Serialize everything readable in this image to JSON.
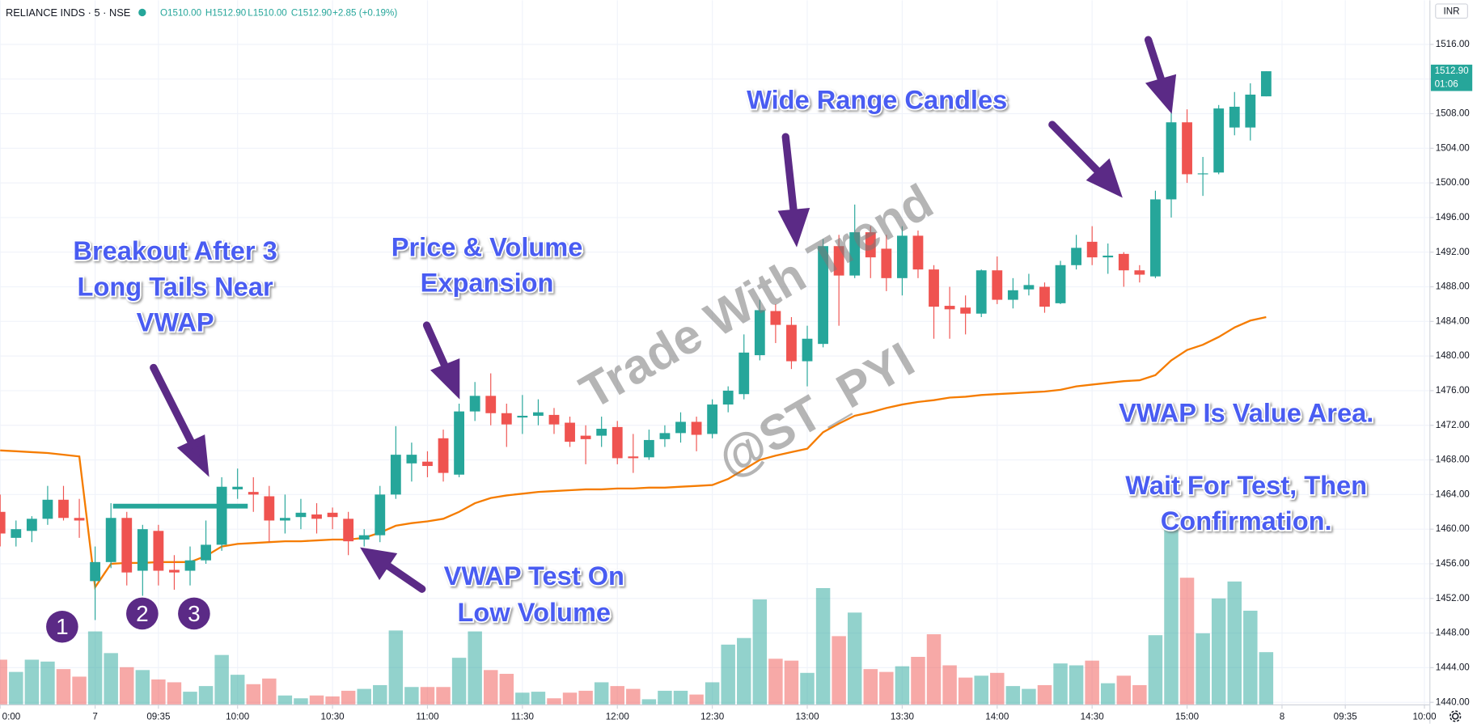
{
  "header": {
    "symbol": "RELIANCE INDS · 5 · NSE",
    "ohlc": [
      "O1510.00",
      "H1512.90",
      "L1510.00",
      "C1512.90",
      "+2.85 (+0.19%)"
    ],
    "currency": "INR"
  },
  "chart_data": {
    "type": "candlestick",
    "categories": [
      "0:00",
      null,
      null,
      null,
      null,
      null,
      "7",
      null,
      null,
      null,
      "09:35",
      null,
      null,
      null,
      null,
      "10:00",
      null,
      null,
      null,
      null,
      null,
      "10:30",
      null,
      null,
      null,
      null,
      null,
      "11:00",
      null,
      null,
      null,
      null,
      null,
      "11:30",
      null,
      null,
      null,
      null,
      null,
      "12:00",
      null,
      null,
      null,
      null,
      null,
      "12:30",
      null,
      null,
      null,
      null,
      null,
      "13:00",
      null,
      null,
      null,
      null,
      null,
      "13:30",
      null,
      null,
      null,
      null,
      null,
      "14:00",
      null,
      null,
      null,
      null,
      null,
      "14:30",
      null,
      null,
      null,
      null,
      null,
      "15:00",
      null,
      null,
      null,
      null,
      null,
      "8",
      null,
      null,
      null,
      "09:35",
      null,
      null,
      null,
      null,
      "10:00"
    ],
    "open": [
      1462,
      1459,
      1459.8,
      1461.2,
      1463.4,
      1461.3,
      1454,
      1456.2,
      1461.3,
      1455.2,
      1459.8,
      1455.3,
      1455.2,
      1456.4,
      1458.2,
      1464.6,
      1464.3,
      1463.8,
      1461,
      1461.4,
      1461.7,
      1461.9,
      1461.2,
      1458.8,
      1459.3,
      1464,
      1467.6,
      1467.8,
      1470.5,
      1466.3,
      1473.6,
      1475.4,
      1473.4,
      1472.9,
      1473.1,
      1473.2,
      1472.3,
      1470.8,
      1470.8,
      1471.8,
      1468.4,
      1468.3,
      1470.4,
      1471.1,
      1472.4,
      1471,
      1474.4,
      1475.6,
      1480.1,
      1485.2,
      1483.6,
      1479.4,
      1481.4,
      1492.7,
      1489.3,
      1494.3,
      1492.4,
      1489,
      1493.9,
      1490,
      1485.8,
      1485.6,
      1484.9,
      1489.9,
      1486.5,
      1487.7,
      1488,
      1486.1,
      1490.5,
      1493.2,
      1491.4,
      1491.8,
      1489.9,
      1489.2,
      1498.1,
      1507,
      1501,
      1501.2,
      1506.4,
      1506.4,
      1510,
      null,
      null,
      null,
      null,
      null,
      null,
      null,
      null,
      null,
      null
    ],
    "high": [
      1464,
      1461,
      1461.5,
      1465,
      1465,
      1463.5,
      1458,
      1463,
      1462,
      1460.5,
      1460.5,
      1457,
      1458,
      1461,
      1466,
      1467,
      1466,
      1465,
      1464,
      1463.5,
      1463,
      1462.5,
      1462,
      1460,
      1465,
      1471.9,
      1470,
      1469,
      1471.5,
      1474.5,
      1477,
      1478,
      1474.5,
      1475.5,
      1475,
      1474,
      1473,
      1472,
      1473,
      1472.5,
      1471,
      1471.5,
      1472,
      1473.5,
      1473,
      1475,
      1476.5,
      1482.5,
      1486.5,
      1486,
      1484.5,
      1483.5,
      1493.5,
      1494,
      1497.5,
      1495,
      1494,
      1495,
      1494.5,
      1490.5,
      1488,
      1487,
      1490,
      1491.5,
      1489,
      1489.5,
      1488.5,
      1491,
      1494,
      1495,
      1493,
      1492,
      1490.5,
      1499.1,
      1508.5,
      1508.5,
      1503,
      1509,
      1510.5,
      1511.5,
      1512.9,
      null,
      null,
      null,
      null,
      null,
      null,
      null,
      null,
      null,
      null
    ],
    "low": [
      1458,
      1458,
      1458.5,
      1460.5,
      1461,
      1459,
      1449.5,
      1455.5,
      1453.5,
      1452.3,
      1453.5,
      1453,
      1453.5,
      1456,
      1457.5,
      1463.5,
      1462,
      1458.5,
      1459.5,
      1460,
      1459.5,
      1460,
      1457,
      1458,
      1458.5,
      1463.5,
      1465.5,
      1466,
      1465.5,
      1466,
      1472.5,
      1472,
      1469.5,
      1471,
      1472,
      1471,
      1469.5,
      1467.5,
      1469.5,
      1467.5,
      1466.5,
      1468,
      1469.5,
      1470,
      1469,
      1470.5,
      1473.5,
      1475,
      1479.5,
      1481.5,
      1478.5,
      1476.5,
      1481,
      1483.5,
      1489,
      1489,
      1487.5,
      1487,
      1489,
      1482,
      1482,
      1482.5,
      1484.5,
      1486,
      1485.5,
      1487,
      1485,
      1486,
      1490,
      1490.5,
      1489.5,
      1488,
      1488.5,
      1489,
      1496,
      1500,
      1498.5,
      1501,
      1505.5,
      1504.9,
      1510,
      null,
      null,
      null,
      null,
      null,
      null,
      null,
      null,
      null,
      null
    ],
    "close": [
      1459.5,
      1460,
      1461.2,
      1463.4,
      1461.3,
      1461,
      1456.2,
      1461.3,
      1455,
      1460,
      1455.2,
      1455,
      1456.4,
      1458.2,
      1464.9,
      1464.9,
      1464,
      1461,
      1461.3,
      1461.9,
      1461.2,
      1461.4,
      1458.6,
      1459.3,
      1464,
      1468.6,
      1468.6,
      1467.3,
      1466.5,
      1473.6,
      1475.4,
      1473.4,
      1472.1,
      1473.1,
      1473.5,
      1472.1,
      1470.1,
      1470.4,
      1471.6,
      1468.2,
      1468.2,
      1470.3,
      1471.1,
      1472.4,
      1470.9,
      1474.4,
      1476,
      1480.4,
      1485.3,
      1483.6,
      1479.4,
      1482,
      1492.7,
      1489.3,
      1494.3,
      1491.4,
      1489,
      1493.9,
      1490,
      1485.7,
      1485.4,
      1484.9,
      1489.9,
      1486.5,
      1487.6,
      1488.2,
      1485.7,
      1490.5,
      1492.5,
      1491.4,
      1491.6,
      1489.9,
      1489.4,
      1498.1,
      1507,
      1501,
      1501.1,
      1508.6,
      1508.8,
      1510.2,
      1512.9,
      null,
      null,
      null,
      null,
      null,
      null,
      null,
      null,
      null,
      null
    ],
    "up_color": "#26a69a",
    "down_color": "#ef5350",
    "volume": {
      "values": [
        48,
        35,
        48,
        46,
        38,
        30,
        78,
        55,
        40,
        37,
        27,
        24,
        14,
        20,
        53,
        32,
        22,
        28,
        10,
        7,
        10,
        9,
        15,
        17,
        21,
        79,
        19,
        19,
        19,
        50,
        78,
        37,
        33,
        13,
        14,
        7,
        13,
        15,
        24,
        20,
        17,
        6,
        15,
        15,
        11,
        24,
        64,
        71,
        112,
        49,
        47,
        34,
        124,
        73,
        98,
        38,
        35,
        41,
        51,
        75,
        42,
        29,
        31,
        34,
        20,
        17,
        21,
        44,
        42,
        47,
        23,
        31,
        21,
        74,
        186,
        135,
        76,
        113,
        131,
        100,
        56,
        null,
        null,
        null,
        null,
        null,
        null,
        null,
        null,
        null,
        null
      ],
      "lim": [
        0,
        200
      ],
      "up_color": "rgba(38,166,154,0.5)",
      "down_color": "rgba(239,83,80,0.5)"
    },
    "vwap": {
      "color": "#f57c00",
      "values": [
        1469.1,
        1469,
        1468.9,
        1468.8,
        1468.6,
        1468.4,
        1453.3,
        1456,
        1456.1,
        1456.1,
        1456.2,
        1456.2,
        1456.2,
        1456.9,
        1458,
        1458.3,
        1458.4,
        1458.5,
        1458.6,
        1458.6,
        1458.7,
        1458.8,
        1458.8,
        1459,
        1459.6,
        1460.4,
        1460.7,
        1460.9,
        1461.2,
        1462,
        1463,
        1463.6,
        1463.9,
        1464.1,
        1464.3,
        1464.4,
        1464.5,
        1464.6,
        1464.6,
        1464.7,
        1464.7,
        1464.8,
        1464.8,
        1464.9,
        1465,
        1465.1,
        1465.8,
        1466.9,
        1468,
        1468.5,
        1468.9,
        1469.3,
        1471.2,
        1472.2,
        1473.1,
        1473.5,
        1474,
        1474.4,
        1474.7,
        1474.9,
        1475.2,
        1475.3,
        1475.5,
        1475.6,
        1475.7,
        1475.8,
        1475.9,
        1476.1,
        1476.5,
        1476.7,
        1476.9,
        1477.1,
        1477.2,
        1477.8,
        1479.5,
        1480.7,
        1481.3,
        1482.2,
        1483.3,
        1484.1,
        1484.5,
        null,
        null,
        null,
        null,
        null,
        null,
        null,
        null,
        null,
        null
      ]
    },
    "ylim": [
      1439.7,
      1521.1
    ],
    "yticks": [
      {
        "value": 1440,
        "label": "1440.00"
      },
      {
        "value": 1444,
        "label": "1444.00"
      },
      {
        "value": 1448,
        "label": "1448.00"
      },
      {
        "value": 1452,
        "label": "1452.00"
      },
      {
        "value": 1456,
        "label": "1456.00"
      },
      {
        "value": 1460,
        "label": "1460.00"
      },
      {
        "value": 1464,
        "label": "1464.00"
      },
      {
        "value": 1468,
        "label": "1468.00"
      },
      {
        "value": 1472,
        "label": "1472.00"
      },
      {
        "value": 1476,
        "label": "1476.00"
      },
      {
        "value": 1480,
        "label": "1480.00"
      },
      {
        "value": 1484,
        "label": "1484.00"
      },
      {
        "value": 1488,
        "label": "1488.00"
      },
      {
        "value": 1492,
        "label": "1492.00"
      },
      {
        "value": 1496,
        "label": "1496.00"
      },
      {
        "value": 1500,
        "label": "1500.00"
      },
      {
        "value": 1504,
        "label": "1504.00"
      },
      {
        "value": 1508,
        "label": "1508.00"
      },
      {
        "value": 1512,
        "label": "1512.00"
      },
      {
        "value": 1516,
        "label": "1516.00"
      }
    ],
    "grid": true,
    "last_price_label": "1512.90",
    "countdown": "01:06",
    "annotations": [
      {
        "lines": [
          "Breakout After 3",
          "Long Tails Near",
          "VWAP"
        ]
      },
      {
        "lines": [
          "Price & Volume",
          "Expansion"
        ]
      },
      {
        "lines": [
          "Wide Range Candles"
        ]
      },
      {
        "lines": [
          "VWAP Test On",
          "Low Volume"
        ]
      },
      {
        "lines": [
          "VWAP Is Value Area."
        ]
      },
      {
        "lines": [
          "Wait For Test, Then",
          "Confirmation."
        ]
      }
    ],
    "markers": [
      "1",
      "2",
      "3"
    ],
    "watermark": [
      "Trade With Trend",
      "@ST_PYI"
    ]
  }
}
